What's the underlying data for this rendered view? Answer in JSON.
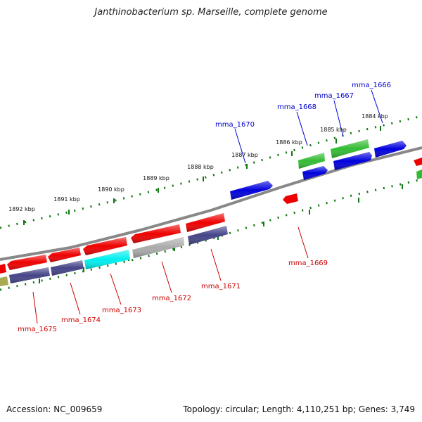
{
  "title": "Janthinobacterium sp. Marseille, complete genome",
  "footer": {
    "accession": "Accession: NC_009659",
    "stats": "Topology: circular; Length: 4,110,251 bp; Genes: 3,749"
  },
  "colors": {
    "red": "#ee0000",
    "blue": "#0000dd",
    "green": "#33bb33",
    "navy": "#444488",
    "grey": "#aaaaaa",
    "cyan": "#00eeee",
    "olive": "#aaaa55",
    "forward_label": "#0000cc",
    "reverse_label": "#cc0000",
    "backbone": "#888888",
    "ticks": "#117711"
  },
  "kbp_labels": [
    "1884 kbp",
    "1885 kbp",
    "1886 kbp",
    "1887 kbp",
    "1888 kbp",
    "1889 kbp",
    "1890 kbp",
    "1891 kbp",
    "1892 kbp"
  ],
  "forward_genes": [
    "mma_1666",
    "mma_1667",
    "mma_1668",
    "mma_1670"
  ],
  "reverse_genes": [
    "mma_1669",
    "mma_1671",
    "mma_1672",
    "mma_1673",
    "mma_1674",
    "mma_1675"
  ]
}
